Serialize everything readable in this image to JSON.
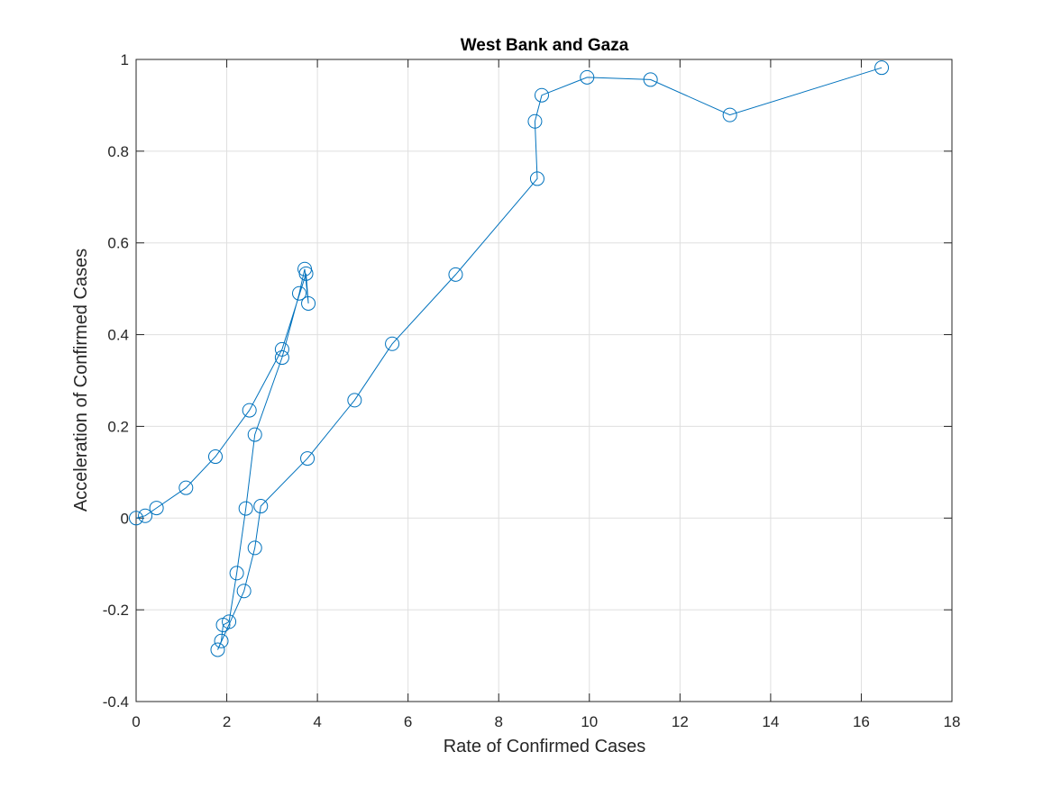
{
  "colors": {
    "series": "#0072BD",
    "axis": "#262626",
    "grid": "#DFDFDF",
    "background": "#FFFFFF"
  },
  "chart_data": {
    "type": "line",
    "title": "West Bank and Gaza",
    "xlabel": "Rate of Confirmed Cases",
    "ylabel": "Acceleration of Confirmed Cases",
    "xlim": [
      0,
      18
    ],
    "ylim": [
      -0.4,
      1
    ],
    "xticks": [
      0,
      2,
      4,
      6,
      8,
      10,
      12,
      14,
      16,
      18
    ],
    "yticks": [
      -0.4,
      -0.2,
      0,
      0.2,
      0.4,
      0.6,
      0.8,
      1
    ],
    "xtick_labels": [
      "0",
      "2",
      "4",
      "6",
      "8",
      "10",
      "12",
      "14",
      "16",
      "18"
    ],
    "ytick_labels": [
      "-0.4",
      "-0.2",
      "0",
      "0.2",
      "0.4",
      "0.6",
      "0.8",
      "1"
    ],
    "grid": true,
    "marker": "circle",
    "series": [
      {
        "x": [
          0.0,
          0.2,
          0.45,
          1.1,
          1.75,
          2.5,
          3.22,
          3.75,
          3.8,
          3.72,
          3.6,
          3.22,
          2.62,
          2.42,
          2.22,
          2.05,
          1.92,
          1.88,
          1.8,
          2.38,
          2.62,
          2.75,
          3.78,
          4.82,
          5.65,
          7.05,
          8.85,
          8.8,
          8.95,
          9.95,
          11.35,
          13.1,
          16.45
        ],
        "y": [
          0.0,
          0.005,
          0.022,
          0.066,
          0.134,
          0.235,
          0.368,
          0.533,
          0.468,
          0.543,
          0.49,
          0.35,
          0.182,
          0.021,
          -0.12,
          -0.226,
          -0.233,
          -0.268,
          -0.287,
          -0.159,
          -0.065,
          0.026,
          0.13,
          0.257,
          0.38,
          0.531,
          0.74,
          0.865,
          0.922,
          0.961,
          0.956,
          0.879,
          0.982
        ]
      }
    ]
  }
}
